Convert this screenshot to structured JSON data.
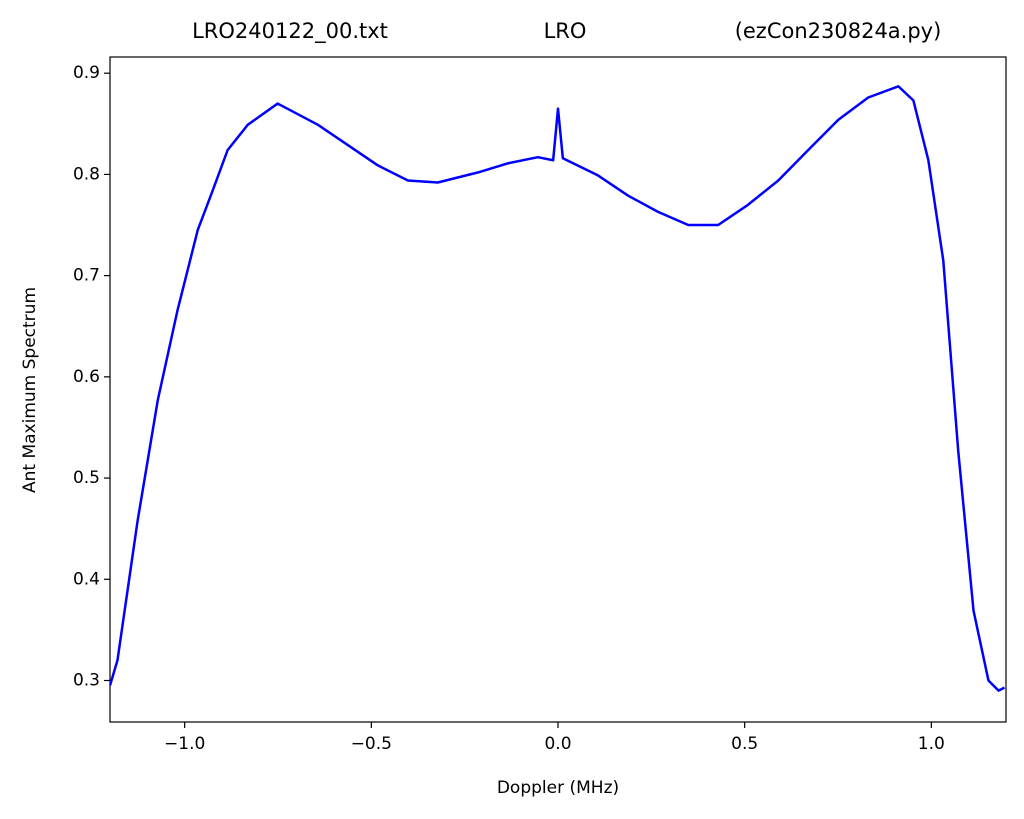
{
  "chart_data": {
    "type": "line",
    "title": [
      "LRO240122_00.txt",
      "LRO",
      "(ezCon230824a.py)"
    ],
    "xlabel": "Doppler (MHz)",
    "ylabel": "Ant Maximum Spectrum",
    "x": [
      -1.2,
      -1.18,
      -1.126,
      -1.072,
      -1.019,
      -0.965,
      -0.925,
      -0.885,
      -0.831,
      -0.751,
      -0.643,
      -0.563,
      -0.483,
      -0.402,
      -0.322,
      -0.214,
      -0.134,
      -0.054,
      -0.013,
      0,
      0.013,
      0.107,
      0.188,
      0.268,
      0.349,
      0.429,
      0.509,
      0.59,
      0.67,
      0.751,
      0.831,
      0.912,
      0.952,
      0.992,
      1.032,
      1.072,
      1.113,
      1.153,
      1.18,
      1.196
    ],
    "values": [
      0.295,
      0.32,
      0.458,
      0.577,
      0.666,
      0.745,
      0.784,
      0.824,
      0.849,
      0.87,
      0.849,
      0.829,
      0.809,
      0.794,
      0.792,
      0.802,
      0.811,
      0.817,
      0.814,
      0.865,
      0.816,
      0.799,
      0.779,
      0.763,
      0.75,
      0.75,
      0.77,
      0.794,
      0.824,
      0.854,
      0.876,
      0.887,
      0.873,
      0.814,
      0.715,
      0.527,
      0.369,
      0.3,
      0.29,
      0.293
    ],
    "color": "#0000ff",
    "xlim": [
      -1.2,
      1.2
    ],
    "ylim": [
      0.259,
      0.916
    ],
    "xticks": [
      {
        "value": -1,
        "label": "−1.0"
      },
      {
        "value": -0.5,
        "label": "−0.5"
      },
      {
        "value": 0,
        "label": "0.0"
      },
      0.5,
      {
        "value": 1,
        "label": "1.0"
      }
    ],
    "yticks": [
      0.3,
      0.4,
      0.5,
      0.6,
      0.7,
      0.8,
      0.9
    ]
  }
}
